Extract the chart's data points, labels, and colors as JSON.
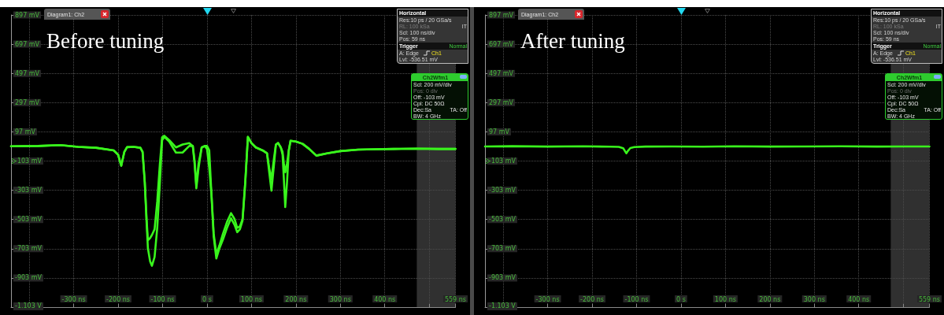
{
  "chart_data": [
    {
      "type": "line",
      "title": "Before tuning",
      "annotations": [
        "Diagram1: Ch2",
        "Horizontal",
        "Res:10 ps / 20 GSa/s",
        "RL: 100 kSa",
        "IT",
        "Scl: 100 ns/div",
        "Pos: 59 ns",
        "Trigger",
        "Normal",
        "A: Edge",
        "Ch1",
        "Lvl: -536.51 mV",
        "Ch2Wfm1",
        "Scl: 200 mV/div",
        "Pos: 0 div",
        "Off: -103 mV",
        "Cpl: DC 50Ω",
        "Dec:Sa",
        "TA: Off",
        "BW: 4 GHz",
        "-1.103 V"
      ],
      "x": [
        -441,
        -380,
        -330,
        -290,
        -250,
        -210,
        -200,
        -193,
        -186,
        -180,
        -165,
        -150,
        -145,
        -140,
        -136,
        -133,
        -128,
        -124,
        -118,
        -112,
        -106,
        -101,
        -96,
        -85,
        -70,
        -55,
        -40,
        -32,
        -28,
        -24,
        -19,
        -12,
        -5,
        0,
        5,
        10,
        15,
        21,
        28,
        36,
        45,
        54,
        62,
        68,
        74,
        80,
        86,
        92,
        100,
        110,
        125,
        135,
        140,
        145,
        150,
        155,
        160,
        166,
        170,
        173,
        176,
        180,
        184,
        188,
        200,
        215,
        230,
        246,
        270,
        300,
        340,
        380,
        420,
        470,
        520,
        559
      ],
      "series": [
        {
          "color": "#39f51c",
          "values": [
            -2,
            0,
            6,
            -6,
            -12,
            -30,
            -60,
            -135,
            -40,
            -8,
            -6,
            -12,
            -40,
            -250,
            -500,
            -645,
            -630,
            -610,
            -570,
            -380,
            -120,
            60,
            70,
            40,
            -10,
            10,
            20,
            0,
            -120,
            -290,
            -150,
            -10,
            0,
            0,
            -30,
            -330,
            -600,
            -740,
            -680,
            -600,
            -520,
            -460,
            -500,
            -560,
            -550,
            -500,
            -250,
            62,
            20,
            -10,
            -30,
            -50,
            -180,
            -306,
            -150,
            10,
            20,
            -10,
            -60,
            -230,
            -418,
            -250,
            -30,
            36,
            30,
            15,
            -20,
            -66,
            -50,
            -35,
            -25,
            -22,
            -20,
            -18,
            -20,
            -20
          ]
        },
        {
          "color": "#39f51c",
          "values": [
            -2,
            0,
            6,
            -6,
            -12,
            -30,
            -60,
            -135,
            -40,
            -8,
            -6,
            -12,
            -40,
            -250,
            -520,
            -700,
            -790,
            -820,
            -760,
            -560,
            -250,
            40,
            62,
            30,
            -45,
            -45,
            0,
            0,
            -100,
            -270,
            -120,
            -10,
            0,
            -20,
            -150,
            -330,
            -620,
            -770,
            -700,
            -640,
            -560,
            -495,
            -540,
            -590,
            -570,
            -510,
            -250,
            62,
            20,
            -10,
            -30,
            -50,
            -150,
            -230,
            -100,
            10,
            20,
            -10,
            -40,
            -120,
            -180,
            -120,
            -30,
            36,
            30,
            15,
            -20,
            -66,
            -50,
            -35,
            -25,
            -22,
            -20,
            -18,
            -20,
            -20
          ]
        }
      ],
      "xlim": [
        -441,
        559
      ],
      "xticks": [
        {
          "value": -400,
          "label": null
        },
        {
          "value": -300,
          "label": "-300 ns"
        },
        {
          "value": -200,
          "label": "-200 ns"
        },
        {
          "value": -100,
          "label": "-100 ns"
        },
        {
          "value": 0,
          "label": "0 s"
        },
        {
          "value": 100,
          "label": "100 ns"
        },
        {
          "value": 200,
          "label": "200 ns"
        },
        {
          "value": 300,
          "label": "300 ns"
        },
        {
          "value": 400,
          "label": "400 ns"
        },
        {
          "value": 500,
          "label": null
        },
        {
          "value": 559,
          "label": "559 ns"
        }
      ],
      "ylim": [
        -1103,
        897
      ],
      "yticks": [
        {
          "value": 897,
          "label": "897 mV"
        },
        {
          "value": 697,
          "label": "697 mV"
        },
        {
          "value": 497,
          "label": "497 mV"
        },
        {
          "value": 297,
          "label": "297 mV"
        },
        {
          "value": 97,
          "label": "97 mV"
        },
        {
          "value": -103,
          "label": "-103 mV"
        },
        {
          "value": -303,
          "label": "-303 mV"
        },
        {
          "value": -503,
          "label": "-503 mV"
        },
        {
          "value": -703,
          "label": "-703 mV"
        },
        {
          "value": -903,
          "label": "-903 mV"
        },
        {
          "value": -1103,
          "label": null
        }
      ],
      "grid": true,
      "bands": [
        {
          "axis": "x",
          "from": 472,
          "to": 559,
          "color": "#303030"
        }
      ]
    },
    {
      "type": "line",
      "title": "After tuning",
      "annotations": [
        "Diagram1: Ch2",
        "Horizontal",
        "Res:10 ps / 20 GSa/s",
        "RL: 100 kSa",
        "IT",
        "Scl: 100 ns/div",
        "Pos: 59 ns",
        "Trigger",
        "Normal",
        "A: Edge",
        "Ch1",
        "Lvl: -536.51 mV",
        "Ch2Wfm1",
        "Scl: 200 mV/div",
        "Pos: 0 div",
        "Off: -103 mV",
        "Cpl: DC 50Ω",
        "Dec:Sa",
        "TA: Off",
        "BW: 4 GHz",
        "-1.103 V"
      ],
      "x": [
        -441,
        -380,
        -300,
        -220,
        -160,
        -140,
        -130,
        -126,
        -123,
        -119,
        -114,
        -105,
        -80,
        -20,
        50,
        120,
        200,
        280,
        360,
        440,
        500,
        559
      ],
      "series": [
        {
          "color": "#39f51c",
          "values": [
            -3,
            -1,
            -4,
            -2,
            -5,
            -6,
            -15,
            -35,
            -50,
            -32,
            -14,
            -7,
            -4,
            -3,
            -5,
            -2,
            -4,
            -3,
            -2,
            -4,
            -3,
            -3
          ]
        }
      ],
      "xlim": [
        -441,
        559
      ],
      "xticks": [
        {
          "value": -400,
          "label": null
        },
        {
          "value": -300,
          "label": "-300 ns"
        },
        {
          "value": -200,
          "label": "-200 ns"
        },
        {
          "value": -100,
          "label": "-100 ns"
        },
        {
          "value": 0,
          "label": "0 s"
        },
        {
          "value": 100,
          "label": "100 ns"
        },
        {
          "value": 200,
          "label": "200 ns"
        },
        {
          "value": 300,
          "label": "300 ns"
        },
        {
          "value": 400,
          "label": "400 ns"
        },
        {
          "value": 500,
          "label": null
        },
        {
          "value": 559,
          "label": "559 ns"
        }
      ],
      "ylim": [
        -1103,
        897
      ],
      "yticks": [
        {
          "value": 897,
          "label": "897 mV"
        },
        {
          "value": 697,
          "label": "697 mV"
        },
        {
          "value": 497,
          "label": "497 mV"
        },
        {
          "value": 297,
          "label": "297 mV"
        },
        {
          "value": 97,
          "label": "97 mV"
        },
        {
          "value": -103,
          "label": "-103 mV"
        },
        {
          "value": -303,
          "label": "-303 mV"
        },
        {
          "value": -503,
          "label": "-503 mV"
        },
        {
          "value": -703,
          "label": "-703 mV"
        },
        {
          "value": -903,
          "label": "-903 mV"
        },
        {
          "value": -1103,
          "label": null
        }
      ],
      "grid": true,
      "bands": [
        {
          "axis": "x",
          "from": 472,
          "to": 559,
          "color": "#303030"
        }
      ]
    }
  ]
}
